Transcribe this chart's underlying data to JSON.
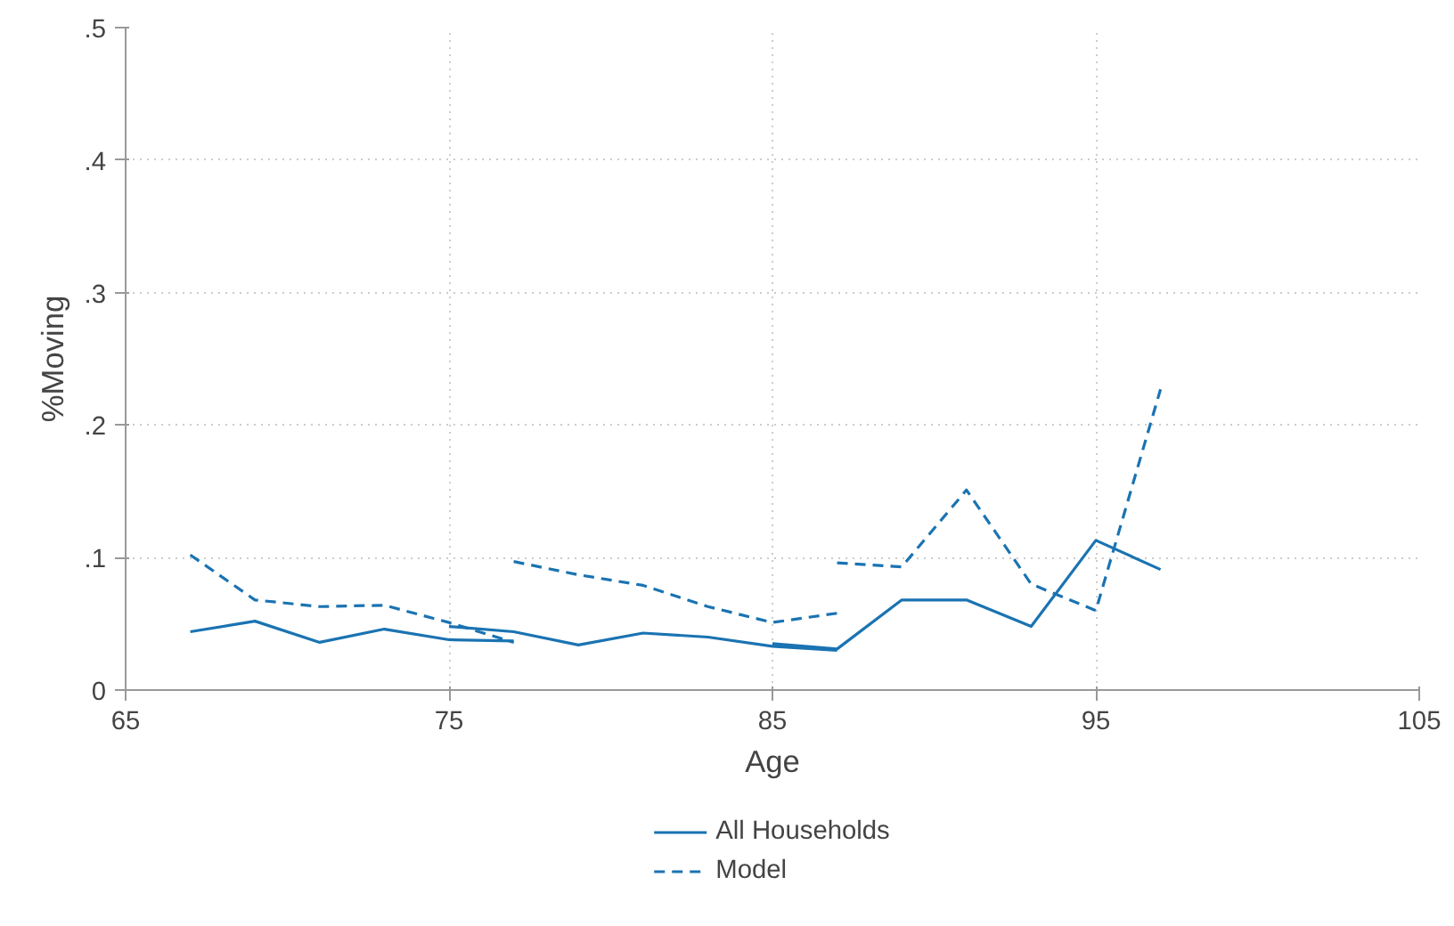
{
  "chart_data": {
    "type": "line",
    "xlabel": "Age",
    "ylabel": "%Moving",
    "xlim": [
      65,
      105
    ],
    "xticks": [
      65,
      75,
      85,
      95,
      105
    ],
    "ylim": [
      0,
      0.5
    ],
    "yticks": [
      {
        "value": 0,
        "label": "0"
      },
      {
        "value": 0.1,
        "label": ".1"
      },
      {
        "value": 0.2,
        "label": ".2"
      },
      {
        "value": 0.3,
        "label": ".3"
      },
      {
        "value": 0.4,
        "label": ".4"
      },
      {
        "value": 0.5,
        "label": ".5"
      }
    ],
    "grid": true,
    "legend": "bottom",
    "series": [
      {
        "name": "All Households",
        "color": "#1a73b2",
        "line_style": "solid",
        "x": [
          67,
          69,
          71,
          73,
          75,
          77,
          null,
          75,
          77,
          79,
          81,
          83,
          85,
          87,
          null,
          85,
          87,
          89,
          91,
          93,
          95,
          97
        ],
        "values": [
          0.044,
          0.052,
          0.036,
          0.046,
          0.038,
          0.037,
          null,
          0.048,
          0.044,
          0.034,
          0.043,
          0.04,
          0.033,
          0.03,
          null,
          0.035,
          0.031,
          0.068,
          0.068,
          0.048,
          0.113,
          0.091
        ]
      },
      {
        "name": "Model",
        "color": "#1a73b2",
        "line_style": "dashed",
        "x": [
          67,
          69,
          71,
          73,
          75,
          77,
          null,
          77,
          79,
          81,
          83,
          85,
          87,
          null,
          87,
          89,
          91,
          93,
          95,
          97
        ],
        "values": [
          0.102,
          0.068,
          0.063,
          0.064,
          0.051,
          0.036,
          null,
          0.097,
          0.087,
          0.079,
          0.063,
          0.051,
          0.058,
          null,
          0.096,
          0.093,
          0.151,
          0.08,
          0.06,
          0.227
        ]
      }
    ]
  }
}
